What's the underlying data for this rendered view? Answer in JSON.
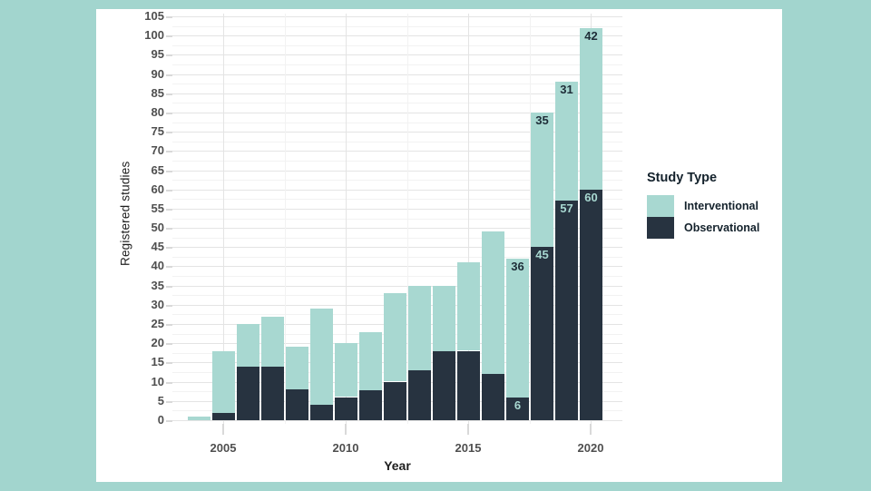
{
  "page": {
    "background": "#a2d5ce",
    "card_background": "#ffffff"
  },
  "colors": {
    "grid_major": "#e4e4e4",
    "grid_minor": "#f2f2f2",
    "tick_mark": "#d9d9d9",
    "axis_text": "#4f4f4f",
    "axis_title": "#1f1f1f",
    "legend_text": "#14222c"
  },
  "chart_data": {
    "type": "bar",
    "stacked": true,
    "title": "",
    "xlabel": "Year",
    "ylabel": "Registered studies",
    "legend_title": "Study Type",
    "legend_position": "right",
    "grid": "major+minor horizontal and vertical",
    "ylim": [
      0,
      105
    ],
    "y_ticks": [
      0,
      5,
      10,
      15,
      20,
      25,
      30,
      35,
      40,
      45,
      50,
      55,
      60,
      65,
      70,
      75,
      80,
      85,
      90,
      95,
      100,
      105
    ],
    "x_ticks": [
      "2005",
      "2010",
      "2015",
      "2020"
    ],
    "categories": [
      "2004",
      "2005",
      "2006",
      "2007",
      "2008",
      "2009",
      "2010",
      "2011",
      "2012",
      "2013",
      "2014",
      "2015",
      "2016",
      "2017",
      "2018",
      "2019",
      "2020"
    ],
    "series": [
      {
        "name": "Interventional",
        "color": "#a8d8d1",
        "label_color": "#1e2d38",
        "values": [
          1,
          16,
          11,
          13,
          11,
          25,
          14,
          15,
          23,
          22,
          17,
          23,
          37,
          36,
          35,
          31,
          42
        ],
        "labels": [
          null,
          null,
          null,
          null,
          null,
          null,
          null,
          null,
          null,
          null,
          null,
          null,
          null,
          "36",
          "35",
          "31",
          "42"
        ]
      },
      {
        "name": "Observational",
        "color": "#273340",
        "label_color": "#a8d8d1",
        "values": [
          0,
          2,
          14,
          14,
          8,
          4,
          6,
          8,
          10,
          13,
          18,
          18,
          12,
          6,
          45,
          57,
          60
        ],
        "labels": [
          null,
          null,
          null,
          null,
          null,
          null,
          null,
          null,
          null,
          null,
          null,
          null,
          null,
          "6",
          "45",
          "57",
          "60"
        ]
      }
    ],
    "stack_order_bottom_to_top": [
      "Observational",
      "Interventional"
    ],
    "totals": [
      1,
      18,
      25,
      27,
      19,
      29,
      20,
      23,
      33,
      35,
      35,
      41,
      49,
      42,
      80,
      88,
      102
    ]
  }
}
